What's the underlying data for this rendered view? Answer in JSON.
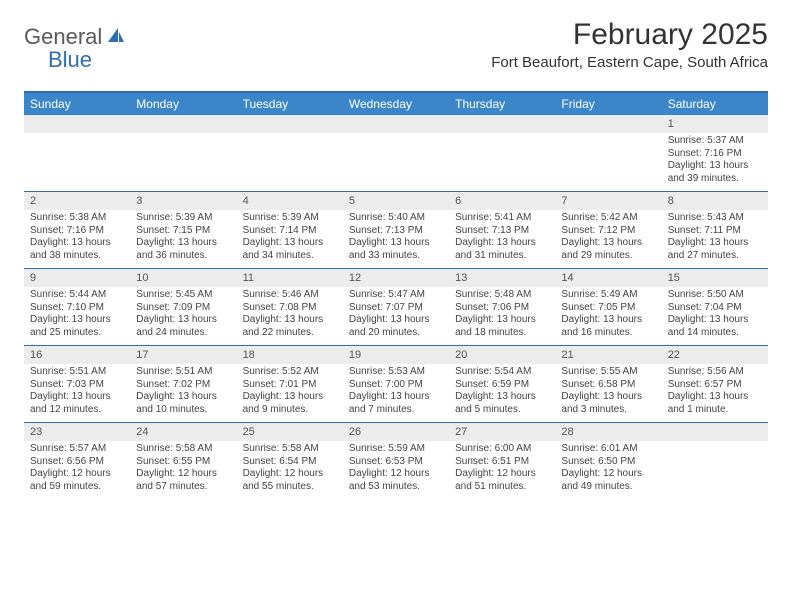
{
  "logo": {
    "text1": "General",
    "text2": "Blue"
  },
  "title": "February 2025",
  "subtitle": "Fort Beaufort, Eastern Cape, South Africa",
  "colors": {
    "header_bar": "#3b86c8",
    "rule": "#2f6fb0",
    "daynum_bg": "#ececec",
    "text": "#333333",
    "logo_blue": "#2f6fb0",
    "logo_gray": "#5a5a5a"
  },
  "day_headers": [
    "Sunday",
    "Monday",
    "Tuesday",
    "Wednesday",
    "Thursday",
    "Friday",
    "Saturday"
  ],
  "weeks": [
    [
      {
        "n": "",
        "lines": []
      },
      {
        "n": "",
        "lines": []
      },
      {
        "n": "",
        "lines": []
      },
      {
        "n": "",
        "lines": []
      },
      {
        "n": "",
        "lines": []
      },
      {
        "n": "",
        "lines": []
      },
      {
        "n": "1",
        "lines": [
          "Sunrise: 5:37 AM",
          "Sunset: 7:16 PM",
          "Daylight: 13 hours and 39 minutes."
        ]
      }
    ],
    [
      {
        "n": "2",
        "lines": [
          "Sunrise: 5:38 AM",
          "Sunset: 7:16 PM",
          "Daylight: 13 hours and 38 minutes."
        ]
      },
      {
        "n": "3",
        "lines": [
          "Sunrise: 5:39 AM",
          "Sunset: 7:15 PM",
          "Daylight: 13 hours and 36 minutes."
        ]
      },
      {
        "n": "4",
        "lines": [
          "Sunrise: 5:39 AM",
          "Sunset: 7:14 PM",
          "Daylight: 13 hours and 34 minutes."
        ]
      },
      {
        "n": "5",
        "lines": [
          "Sunrise: 5:40 AM",
          "Sunset: 7:13 PM",
          "Daylight: 13 hours and 33 minutes."
        ]
      },
      {
        "n": "6",
        "lines": [
          "Sunrise: 5:41 AM",
          "Sunset: 7:13 PM",
          "Daylight: 13 hours and 31 minutes."
        ]
      },
      {
        "n": "7",
        "lines": [
          "Sunrise: 5:42 AM",
          "Sunset: 7:12 PM",
          "Daylight: 13 hours and 29 minutes."
        ]
      },
      {
        "n": "8",
        "lines": [
          "Sunrise: 5:43 AM",
          "Sunset: 7:11 PM",
          "Daylight: 13 hours and 27 minutes."
        ]
      }
    ],
    [
      {
        "n": "9",
        "lines": [
          "Sunrise: 5:44 AM",
          "Sunset: 7:10 PM",
          "Daylight: 13 hours and 25 minutes."
        ]
      },
      {
        "n": "10",
        "lines": [
          "Sunrise: 5:45 AM",
          "Sunset: 7:09 PM",
          "Daylight: 13 hours and 24 minutes."
        ]
      },
      {
        "n": "11",
        "lines": [
          "Sunrise: 5:46 AM",
          "Sunset: 7:08 PM",
          "Daylight: 13 hours and 22 minutes."
        ]
      },
      {
        "n": "12",
        "lines": [
          "Sunrise: 5:47 AM",
          "Sunset: 7:07 PM",
          "Daylight: 13 hours and 20 minutes."
        ]
      },
      {
        "n": "13",
        "lines": [
          "Sunrise: 5:48 AM",
          "Sunset: 7:06 PM",
          "Daylight: 13 hours and 18 minutes."
        ]
      },
      {
        "n": "14",
        "lines": [
          "Sunrise: 5:49 AM",
          "Sunset: 7:05 PM",
          "Daylight: 13 hours and 16 minutes."
        ]
      },
      {
        "n": "15",
        "lines": [
          "Sunrise: 5:50 AM",
          "Sunset: 7:04 PM",
          "Daylight: 13 hours and 14 minutes."
        ]
      }
    ],
    [
      {
        "n": "16",
        "lines": [
          "Sunrise: 5:51 AM",
          "Sunset: 7:03 PM",
          "Daylight: 13 hours and 12 minutes."
        ]
      },
      {
        "n": "17",
        "lines": [
          "Sunrise: 5:51 AM",
          "Sunset: 7:02 PM",
          "Daylight: 13 hours and 10 minutes."
        ]
      },
      {
        "n": "18",
        "lines": [
          "Sunrise: 5:52 AM",
          "Sunset: 7:01 PM",
          "Daylight: 13 hours and 9 minutes."
        ]
      },
      {
        "n": "19",
        "lines": [
          "Sunrise: 5:53 AM",
          "Sunset: 7:00 PM",
          "Daylight: 13 hours and 7 minutes."
        ]
      },
      {
        "n": "20",
        "lines": [
          "Sunrise: 5:54 AM",
          "Sunset: 6:59 PM",
          "Daylight: 13 hours and 5 minutes."
        ]
      },
      {
        "n": "21",
        "lines": [
          "Sunrise: 5:55 AM",
          "Sunset: 6:58 PM",
          "Daylight: 13 hours and 3 minutes."
        ]
      },
      {
        "n": "22",
        "lines": [
          "Sunrise: 5:56 AM",
          "Sunset: 6:57 PM",
          "Daylight: 13 hours and 1 minute."
        ]
      }
    ],
    [
      {
        "n": "23",
        "lines": [
          "Sunrise: 5:57 AM",
          "Sunset: 6:56 PM",
          "Daylight: 12 hours and 59 minutes."
        ]
      },
      {
        "n": "24",
        "lines": [
          "Sunrise: 5:58 AM",
          "Sunset: 6:55 PM",
          "Daylight: 12 hours and 57 minutes."
        ]
      },
      {
        "n": "25",
        "lines": [
          "Sunrise: 5:58 AM",
          "Sunset: 6:54 PM",
          "Daylight: 12 hours and 55 minutes."
        ]
      },
      {
        "n": "26",
        "lines": [
          "Sunrise: 5:59 AM",
          "Sunset: 6:53 PM",
          "Daylight: 12 hours and 53 minutes."
        ]
      },
      {
        "n": "27",
        "lines": [
          "Sunrise: 6:00 AM",
          "Sunset: 6:51 PM",
          "Daylight: 12 hours and 51 minutes."
        ]
      },
      {
        "n": "28",
        "lines": [
          "Sunrise: 6:01 AM",
          "Sunset: 6:50 PM",
          "Daylight: 12 hours and 49 minutes."
        ]
      },
      {
        "n": "",
        "lines": []
      }
    ]
  ]
}
